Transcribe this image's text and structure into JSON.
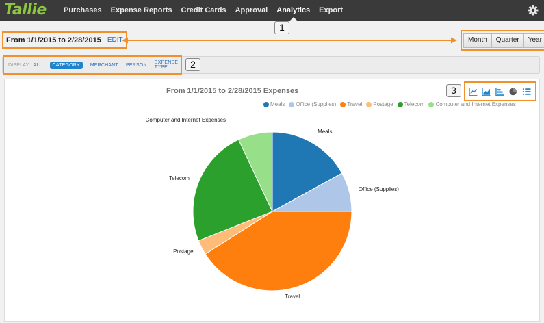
{
  "app": {
    "logo": "Tallie",
    "nav": [
      "Purchases",
      "Expense Reports",
      "Credit Cards",
      "Approval",
      "Analytics",
      "Export"
    ],
    "active_nav": "Analytics"
  },
  "date_range": {
    "text": "From 1/1/2015 to 2/28/2015",
    "edit_label": "EDIT"
  },
  "period_buttons": [
    "Month",
    "Quarter",
    "Year"
  ],
  "callouts": [
    "1",
    "2",
    "3"
  ],
  "display_filter": {
    "label": "DISPLAY",
    "options": [
      "ALL",
      "CATEGORY",
      "MERCHANT",
      "PERSON",
      "EXPENSE TYPE"
    ],
    "active": "CATEGORY"
  },
  "chart_type_icons": [
    "line-chart-icon",
    "area-chart-icon",
    "bar-chart-icon",
    "pie-chart-icon",
    "list-icon"
  ],
  "colors": {
    "accent": "#f0912d",
    "link": "#2a6ebb",
    "logo": "#8cc63f"
  },
  "chart_data": {
    "type": "pie",
    "title": "From 1/1/2015 to 2/28/2015 Expenses",
    "legend_position": "top",
    "series": [
      {
        "name": "Meals",
        "value": 17,
        "color": "#1f77b4"
      },
      {
        "name": "Office (Supplies)",
        "value": 8,
        "color": "#aec7e8"
      },
      {
        "name": "Travel",
        "value": 41,
        "color": "#ff7f0e"
      },
      {
        "name": "Postage",
        "value": 3,
        "color": "#ffbb78"
      },
      {
        "name": "Telecom",
        "value": 24,
        "color": "#2ca02c"
      },
      {
        "name": "Computer and Internet Expenses",
        "value": 7,
        "color": "#98df8a"
      }
    ]
  }
}
